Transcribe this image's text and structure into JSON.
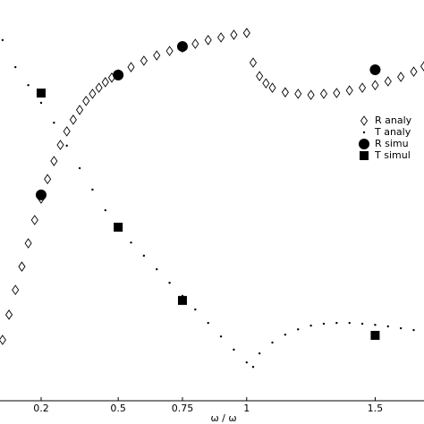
{
  "chart_data": {
    "type": "scatter",
    "x_label": "ω / ω",
    "xlim": [
      0.04,
      1.69
    ],
    "ylim": [
      0,
      1
    ],
    "xticks": [
      0.2,
      0.5,
      0.75,
      1,
      1.5
    ],
    "legend": "right",
    "series": [
      {
        "name": "R analy",
        "marker": "diamond",
        "color": "#000000",
        "x": [
          0.05,
          0.075,
          0.1,
          0.125,
          0.15,
          0.175,
          0.2,
          0.225,
          0.25,
          0.275,
          0.3,
          0.325,
          0.35,
          0.375,
          0.4,
          0.425,
          0.45,
          0.475,
          0.5,
          0.55,
          0.6,
          0.65,
          0.7,
          0.75,
          0.8,
          0.85,
          0.9,
          0.95,
          1.0,
          1.025,
          1.05,
          1.075,
          1.1,
          1.15,
          1.2,
          1.25,
          1.3,
          1.35,
          1.4,
          1.45,
          1.5,
          1.55,
          1.6,
          1.65,
          1.69
        ],
        "values": [
          0.162,
          0.229,
          0.295,
          0.357,
          0.419,
          0.481,
          0.538,
          0.59,
          0.638,
          0.681,
          0.717,
          0.748,
          0.774,
          0.798,
          0.817,
          0.833,
          0.848,
          0.86,
          0.869,
          0.888,
          0.905,
          0.919,
          0.931,
          0.94,
          0.95,
          0.96,
          0.967,
          0.974,
          0.979,
          0.9,
          0.864,
          0.845,
          0.833,
          0.821,
          0.817,
          0.814,
          0.817,
          0.819,
          0.826,
          0.833,
          0.84,
          0.85,
          0.862,
          0.876,
          0.89
        ]
      },
      {
        "name": "T analy",
        "marker": "dot",
        "color": "#000000",
        "x": [
          0.05,
          0.1,
          0.15,
          0.2,
          0.25,
          0.3,
          0.35,
          0.4,
          0.45,
          0.5,
          0.55,
          0.6,
          0.65,
          0.7,
          0.75,
          0.8,
          0.85,
          0.9,
          0.95,
          1.0,
          1.025,
          1.05,
          1.1,
          1.15,
          1.2,
          1.25,
          1.3,
          1.35,
          1.4,
          1.45,
          1.5,
          1.55,
          1.6,
          1.65
        ],
        "values": [
          0.96,
          0.888,
          0.84,
          0.793,
          0.74,
          0.679,
          0.619,
          0.562,
          0.507,
          0.46,
          0.421,
          0.386,
          0.35,
          0.314,
          0.279,
          0.243,
          0.207,
          0.171,
          0.136,
          0.102,
          0.09,
          0.126,
          0.155,
          0.176,
          0.19,
          0.2,
          0.205,
          0.207,
          0.207,
          0.205,
          0.202,
          0.198,
          0.193,
          0.188
        ]
      },
      {
        "name": "R simu",
        "marker": "circle",
        "color": "#000000",
        "x": [
          0.2,
          0.5,
          0.75,
          1.5
        ],
        "values": [
          0.548,
          0.867,
          0.943,
          0.881
        ]
      },
      {
        "name": "T simul",
        "marker": "square",
        "color": "#000000",
        "x": [
          0.2,
          0.5,
          0.75,
          1.5
        ],
        "values": [
          0.819,
          0.462,
          0.267,
          0.174
        ]
      }
    ]
  }
}
